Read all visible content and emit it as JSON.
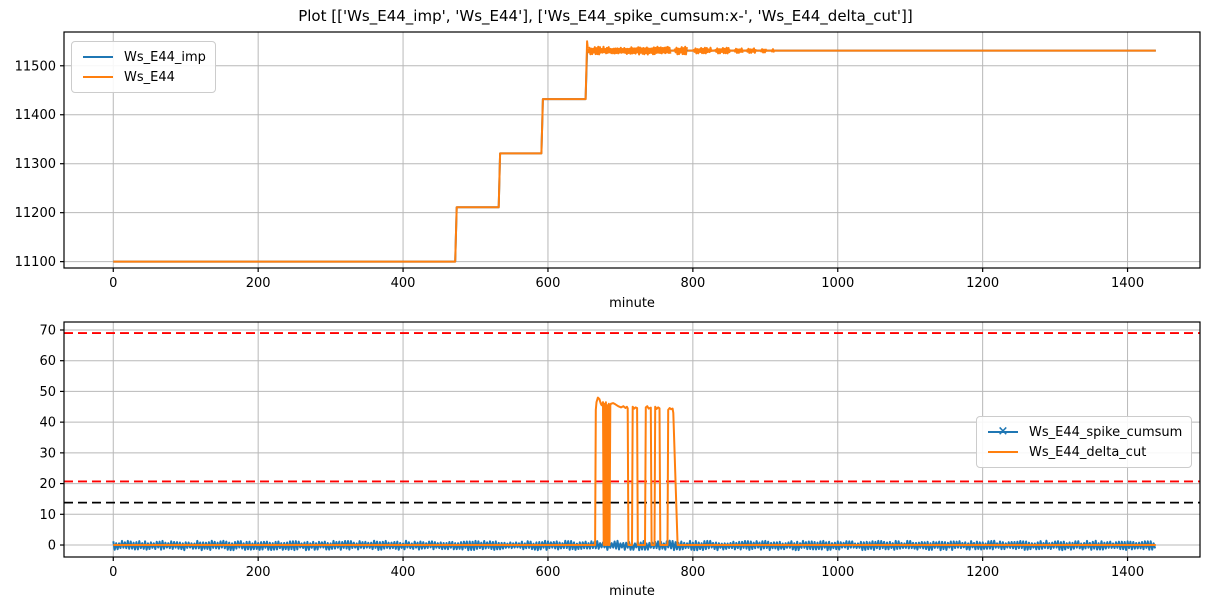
{
  "title": "Plot [['Ws_E44_imp', 'Ws_E44'], ['Ws_E44_spike_cumsum:x-', 'Ws_E44_delta_cut']]",
  "colors": {
    "blue": "#1f77b4",
    "orange": "#ff7f0e",
    "red": "#ff0000",
    "black": "#000000",
    "grid": "#b8b8b8"
  },
  "chart_data": [
    {
      "type": "line",
      "xlabel": "minute",
      "grid": true,
      "legend_position": "upper left",
      "x_ticks": [
        0,
        200,
        400,
        600,
        800,
        1000,
        1200,
        1400
      ],
      "y_ticks": [
        11100,
        11200,
        11300,
        11400,
        11500
      ],
      "xlim": [
        -68,
        1500
      ],
      "ylim": [
        11087,
        11569
      ],
      "series": [
        {
          "name": "Ws_E44_imp",
          "color": "#1f77b4",
          "marker": "none",
          "segments": [
            {
              "poly": [
                [
                  0,
                  11100
                ],
                [
                  472,
                  11100
                ],
                [
                  474,
                  11211
                ],
                [
                  532,
                  11211
                ],
                [
                  534,
                  11321
                ],
                [
                  591,
                  11321
                ],
                [
                  593,
                  11432
                ],
                [
                  652,
                  11432
                ],
                [
                  654,
                  11531
                ],
                [
                  1439,
                  11531
                ]
              ]
            }
          ]
        },
        {
          "name": "Ws_E44",
          "color": "#ff7f0e",
          "marker": "none",
          "segments": [
            {
              "poly": [
                [
                  0,
                  11100
                ],
                [
                  472,
                  11100
                ],
                [
                  474,
                  11211
                ],
                [
                  532,
                  11211
                ],
                [
                  534,
                  11321
                ],
                [
                  591,
                  11321
                ],
                [
                  593,
                  11432
                ],
                [
                  652,
                  11432
                ],
                [
                  654,
                  11550
                ],
                [
                  655,
                  11536
                ]
              ]
            },
            {
              "noise": {
                "x0": 655,
                "x1": 770,
                "ymin": 11523,
                "ymax": 11539,
                "step": 1.2
              }
            },
            {
              "poly": [
                [
                  770,
                  11531
                ],
                [
                  775,
                  11531
                ]
              ]
            },
            {
              "noise": {
                "x0": 775,
                "x1": 793,
                "ymin": 11523,
                "ymax": 11539,
                "step": 1.2
              }
            },
            {
              "poly": [
                [
                  793,
                  11531
                ],
                [
                  1439,
                  11531
                ]
              ]
            },
            {
              "noise": {
                "x0": 801,
                "x1": 826,
                "ymin": 11525,
                "ymax": 11537,
                "step": 1.3
              }
            },
            {
              "noise": {
                "x0": 831,
                "x1": 852,
                "ymin": 11525,
                "ymax": 11537,
                "step": 1.3
              }
            },
            {
              "noise": {
                "x0": 857,
                "x1": 869,
                "ymin": 11526,
                "ymax": 11536,
                "step": 1.3
              }
            },
            {
              "noise": {
                "x0": 874,
                "x1": 887,
                "ymin": 11526,
                "ymax": 11536,
                "step": 1.3
              }
            },
            {
              "noise": {
                "x0": 893,
                "x1": 903,
                "ymin": 11527,
                "ymax": 11535,
                "step": 1.3
              }
            },
            {
              "noise": {
                "x0": 908,
                "x1": 913,
                "ymin": 11527,
                "ymax": 11535,
                "step": 1.3
              }
            }
          ]
        }
      ]
    },
    {
      "type": "line",
      "xlabel": "minute",
      "grid": true,
      "legend_position": "center right",
      "x_ticks": [
        0,
        200,
        400,
        600,
        800,
        1000,
        1200,
        1400
      ],
      "y_ticks": [
        0,
        10,
        20,
        30,
        40,
        50,
        60,
        70
      ],
      "xlim": [
        -68,
        1500
      ],
      "ylim": [
        -3.9,
        72.6
      ],
      "hlines": [
        {
          "y": 69,
          "color": "#ff0000",
          "style": "dashed"
        },
        {
          "y": 20.7,
          "color": "#ff0000",
          "style": "dashed"
        },
        {
          "y": 13.8,
          "color": "#000000",
          "style": "dashed"
        }
      ],
      "series": [
        {
          "name": "Ws_E44_spike_cumsum",
          "color": "#1f77b4",
          "marker": "x",
          "segments": [
            {
              "noise": {
                "x0": 0,
                "x1": 1439,
                "ymin": -1.7,
                "ymax": 1.4,
                "step": 2
              }
            }
          ]
        },
        {
          "name": "Ws_E44_delta_cut",
          "color": "#ff7f0e",
          "marker": "none",
          "segments": [
            {
              "poly": [
                [
                  0,
                  0
                ],
                [
                  665,
                  0
                ],
                [
                  666,
                  44
                ],
                [
                  667,
                  46.5
                ],
                [
                  669,
                  48
                ],
                [
                  671,
                  47.5
                ],
                [
                  673,
                  46
                ],
                [
                  674,
                  45.5
                ],
                [
                  676,
                  46.5
                ],
                [
                  677,
                  0
                ],
                [
                  678,
                  46
                ],
                [
                  679,
                  0
                ],
                [
                  680,
                  46.5
                ],
                [
                  681,
                  0
                ],
                [
                  682,
                  45.5
                ],
                [
                  683,
                  0
                ],
                [
                  684,
                  46
                ],
                [
                  685,
                  0
                ],
                [
                  686,
                  45.5
                ],
                [
                  687,
                  46
                ],
                [
                  690,
                  46.2
                ],
                [
                  693,
                  45.8
                ],
                [
                  697,
                  45.2
                ],
                [
                  701,
                  44.8
                ],
                [
                  704,
                  45.2
                ],
                [
                  707,
                  44.6
                ],
                [
                  709,
                  45
                ],
                [
                  710,
                  44.5
                ],
                [
                  711,
                  0
                ],
                [
                  716,
                  0
                ],
                [
                  717,
                  45
                ],
                [
                  719,
                  44.4
                ],
                [
                  721,
                  44.8
                ],
                [
                  723,
                  44.6
                ],
                [
                  724,
                  0
                ],
                [
                  734,
                  0
                ],
                [
                  735,
                  44.8
                ],
                [
                  737,
                  45.2
                ],
                [
                  739,
                  44.4
                ],
                [
                  742,
                  44.7
                ],
                [
                  743,
                  0
                ],
                [
                  747,
                  0
                ],
                [
                  748,
                  45
                ],
                [
                  750,
                  44.3
                ],
                [
                  752,
                  44.8
                ],
                [
                  754,
                  44.5
                ],
                [
                  755,
                  0
                ],
                [
                  765,
                  0
                ],
                [
                  766,
                  44
                ],
                [
                  768,
                  44.6
                ],
                [
                  770,
                  44.2
                ],
                [
                  772,
                  44.4
                ],
                [
                  773,
                  43
                ],
                [
                  779,
                  0
                ],
                [
                  1439,
                  0
                ]
              ]
            }
          ]
        }
      ]
    }
  ]
}
